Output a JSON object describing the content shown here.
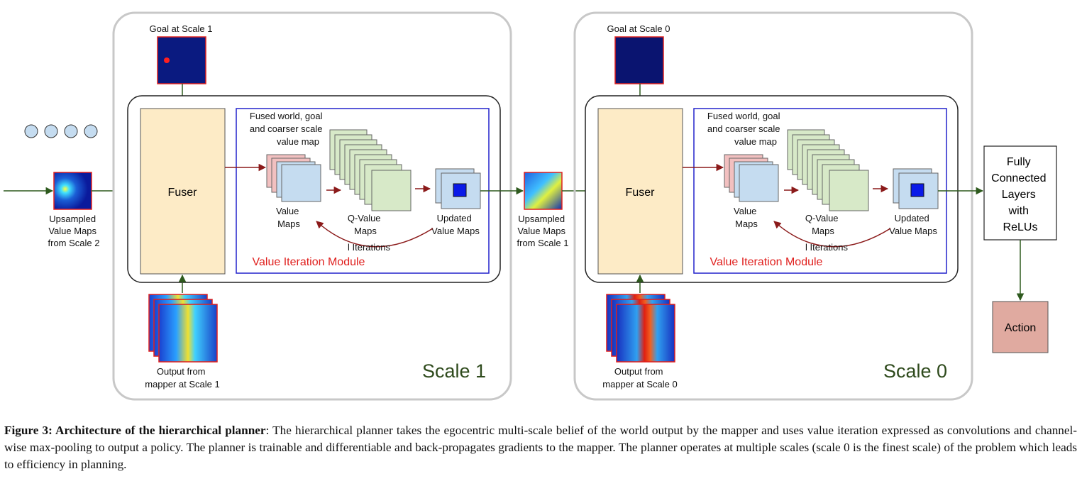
{
  "colors": {
    "arrow_dark_red": "#8b1a1a",
    "arrow_green": "#2e5a1e",
    "fuser_fill": "#fdebc6",
    "value_map_fill": "#c5dcf0",
    "q_map_fill": "#d7e9c8",
    "pink_map_fill": "#f2c0c0",
    "action_fill": "#e0aaa0",
    "blue_border": "#2222cc",
    "vim_label": "#e0201e",
    "scale_label": "#2e4a1c"
  },
  "left_input": {
    "label_lines": [
      "Upsampled",
      "Value Maps",
      "from Scale 2"
    ]
  },
  "scale1": {
    "scale_label": "Scale 1",
    "goal_label": "Goal at Scale 1",
    "fuser_label": "Fuser",
    "fused_label_lines": [
      "Fused world, goal",
      "and coarser scale",
      "value map"
    ],
    "value_maps_lines": [
      "Value",
      "Maps"
    ],
    "q_value_lines": [
      "Q-Value",
      "Maps"
    ],
    "updated_lines": [
      "Updated",
      "Value Maps"
    ],
    "iterations_label": "l Iterations",
    "vim_label": "Value Iteration Module",
    "mapper_lines": [
      "Output from",
      "mapper at Scale 1"
    ]
  },
  "middle_input": {
    "label_lines": [
      "Upsampled",
      "Value Maps",
      "from Scale 1"
    ]
  },
  "scale0": {
    "scale_label": "Scale 0",
    "goal_label": "Goal at Scale 0",
    "fuser_label": "Fuser",
    "fused_label_lines": [
      "Fused world, goal",
      "and coarser scale",
      "value map"
    ],
    "value_maps_lines": [
      "Value",
      "Maps"
    ],
    "q_value_lines": [
      "Q-Value",
      "Maps"
    ],
    "updated_lines": [
      "Updated",
      "Value Maps"
    ],
    "iterations_label": "l Iterations",
    "vim_label": "Value Iteration Module",
    "mapper_lines": [
      "Output from",
      "mapper at Scale 0"
    ]
  },
  "fc_lines": [
    "Fully",
    "Connected",
    "Layers",
    "with",
    "ReLUs"
  ],
  "action_label": "Action",
  "caption": {
    "title": "Figure 3: Architecture of the hierarchical planner",
    "body": ": The hierarchical planner takes the egocentric multi-scale belief of the world output by the mapper and uses value iteration expressed as convolutions and channel-wise max-pooling to output a policy. The planner is trainable and differentiable and back-propagates gradients to the mapper. The planner operates at multiple scales (scale 0 is the finest scale) of the problem which leads to efficiency in planning."
  }
}
